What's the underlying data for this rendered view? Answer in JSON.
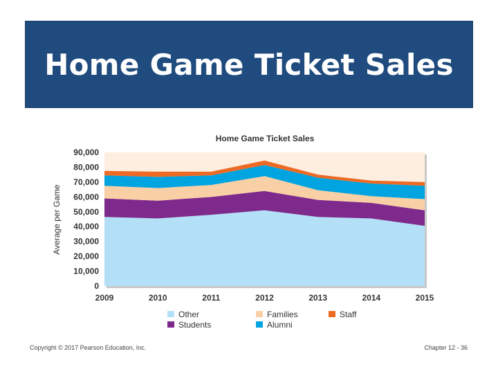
{
  "slide": {
    "title": "Home Game Ticket Sales",
    "copyright": "Copyright © 2017 Pearson Education, Inc.",
    "page": "Chapter 12 - 36"
  },
  "chart_data": {
    "type": "area",
    "stacked": true,
    "title": "Home Game Ticket Sales",
    "xlabel": "",
    "ylabel": "Average per Game",
    "x": [
      2009,
      2010,
      2011,
      2012,
      2013,
      2014,
      2015
    ],
    "x_ticks": [
      "2009",
      "2010",
      "2011",
      "2012",
      "2013",
      "2014",
      "2015"
    ],
    "ylim": [
      0,
      90000
    ],
    "y_ticks": [
      "0",
      "10,000",
      "20,000",
      "30,000",
      "40,000",
      "50,000",
      "60,000",
      "70,000",
      "80,000",
      "90,000"
    ],
    "grid": false,
    "legend_position": "bottom",
    "series": [
      {
        "name": "Other",
        "color": "#b3e0f7",
        "values": [
          46500,
          45500,
          48000,
          51000,
          46500,
          45500,
          40500
        ]
      },
      {
        "name": "Students",
        "color": "#7e2a8c",
        "values": [
          12500,
          12000,
          12000,
          13000,
          11500,
          10500,
          10500
        ]
      },
      {
        "name": "Families",
        "color": "#f9d0a6",
        "values": [
          8500,
          8500,
          8000,
          10000,
          6500,
          4500,
          7500
        ]
      },
      {
        "name": "Alumni",
        "color": "#00a4e0",
        "values": [
          7000,
          7500,
          6500,
          7500,
          8500,
          8500,
          9000
        ]
      },
      {
        "name": "Staff",
        "color": "#ec6a24",
        "values": [
          3000,
          3500,
          2500,
          3000,
          2000,
          2000,
          2500
        ]
      }
    ],
    "plot_background": "#fdeee0",
    "legend_order": [
      "Other",
      "Families",
      "Staff",
      "Students",
      "Alumni"
    ]
  }
}
